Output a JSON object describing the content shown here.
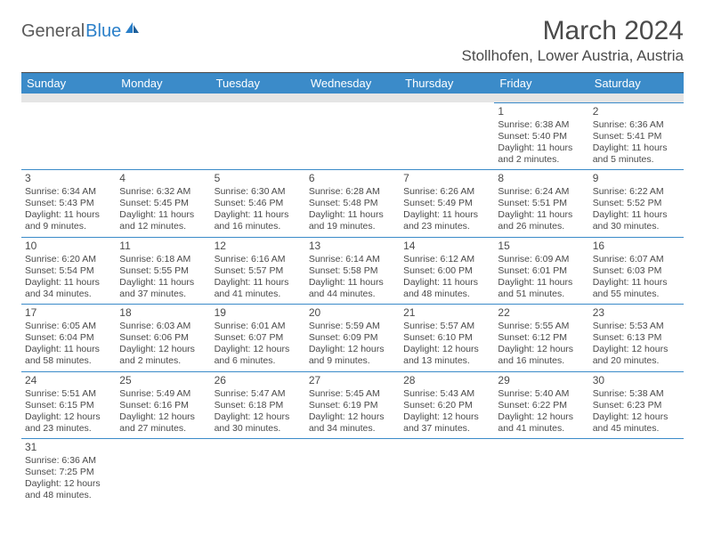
{
  "logo": {
    "text1": "General",
    "text2": "Blue"
  },
  "title": "March 2024",
  "location": "Stollhofen, Lower Austria, Austria",
  "colors": {
    "header_bg": "#3b8bc9",
    "header_fg": "#ffffff",
    "grid_line": "#3b8bc9",
    "text": "#4a4a4a",
    "spacer": "#e5e5e5",
    "logo_blue": "#2a7fc9"
  },
  "weekdays": [
    "Sunday",
    "Monday",
    "Tuesday",
    "Wednesday",
    "Thursday",
    "Friday",
    "Saturday"
  ],
  "weeks": [
    [
      null,
      null,
      null,
      null,
      null,
      {
        "n": "1",
        "sr": "Sunrise: 6:38 AM",
        "ss": "Sunset: 5:40 PM",
        "d1": "Daylight: 11 hours",
        "d2": "and 2 minutes."
      },
      {
        "n": "2",
        "sr": "Sunrise: 6:36 AM",
        "ss": "Sunset: 5:41 PM",
        "d1": "Daylight: 11 hours",
        "d2": "and 5 minutes."
      }
    ],
    [
      {
        "n": "3",
        "sr": "Sunrise: 6:34 AM",
        "ss": "Sunset: 5:43 PM",
        "d1": "Daylight: 11 hours",
        "d2": "and 9 minutes."
      },
      {
        "n": "4",
        "sr": "Sunrise: 6:32 AM",
        "ss": "Sunset: 5:45 PM",
        "d1": "Daylight: 11 hours",
        "d2": "and 12 minutes."
      },
      {
        "n": "5",
        "sr": "Sunrise: 6:30 AM",
        "ss": "Sunset: 5:46 PM",
        "d1": "Daylight: 11 hours",
        "d2": "and 16 minutes."
      },
      {
        "n": "6",
        "sr": "Sunrise: 6:28 AM",
        "ss": "Sunset: 5:48 PM",
        "d1": "Daylight: 11 hours",
        "d2": "and 19 minutes."
      },
      {
        "n": "7",
        "sr": "Sunrise: 6:26 AM",
        "ss": "Sunset: 5:49 PM",
        "d1": "Daylight: 11 hours",
        "d2": "and 23 minutes."
      },
      {
        "n": "8",
        "sr": "Sunrise: 6:24 AM",
        "ss": "Sunset: 5:51 PM",
        "d1": "Daylight: 11 hours",
        "d2": "and 26 minutes."
      },
      {
        "n": "9",
        "sr": "Sunrise: 6:22 AM",
        "ss": "Sunset: 5:52 PM",
        "d1": "Daylight: 11 hours",
        "d2": "and 30 minutes."
      }
    ],
    [
      {
        "n": "10",
        "sr": "Sunrise: 6:20 AM",
        "ss": "Sunset: 5:54 PM",
        "d1": "Daylight: 11 hours",
        "d2": "and 34 minutes."
      },
      {
        "n": "11",
        "sr": "Sunrise: 6:18 AM",
        "ss": "Sunset: 5:55 PM",
        "d1": "Daylight: 11 hours",
        "d2": "and 37 minutes."
      },
      {
        "n": "12",
        "sr": "Sunrise: 6:16 AM",
        "ss": "Sunset: 5:57 PM",
        "d1": "Daylight: 11 hours",
        "d2": "and 41 minutes."
      },
      {
        "n": "13",
        "sr": "Sunrise: 6:14 AM",
        "ss": "Sunset: 5:58 PM",
        "d1": "Daylight: 11 hours",
        "d2": "and 44 minutes."
      },
      {
        "n": "14",
        "sr": "Sunrise: 6:12 AM",
        "ss": "Sunset: 6:00 PM",
        "d1": "Daylight: 11 hours",
        "d2": "and 48 minutes."
      },
      {
        "n": "15",
        "sr": "Sunrise: 6:09 AM",
        "ss": "Sunset: 6:01 PM",
        "d1": "Daylight: 11 hours",
        "d2": "and 51 minutes."
      },
      {
        "n": "16",
        "sr": "Sunrise: 6:07 AM",
        "ss": "Sunset: 6:03 PM",
        "d1": "Daylight: 11 hours",
        "d2": "and 55 minutes."
      }
    ],
    [
      {
        "n": "17",
        "sr": "Sunrise: 6:05 AM",
        "ss": "Sunset: 6:04 PM",
        "d1": "Daylight: 11 hours",
        "d2": "and 58 minutes."
      },
      {
        "n": "18",
        "sr": "Sunrise: 6:03 AM",
        "ss": "Sunset: 6:06 PM",
        "d1": "Daylight: 12 hours",
        "d2": "and 2 minutes."
      },
      {
        "n": "19",
        "sr": "Sunrise: 6:01 AM",
        "ss": "Sunset: 6:07 PM",
        "d1": "Daylight: 12 hours",
        "d2": "and 6 minutes."
      },
      {
        "n": "20",
        "sr": "Sunrise: 5:59 AM",
        "ss": "Sunset: 6:09 PM",
        "d1": "Daylight: 12 hours",
        "d2": "and 9 minutes."
      },
      {
        "n": "21",
        "sr": "Sunrise: 5:57 AM",
        "ss": "Sunset: 6:10 PM",
        "d1": "Daylight: 12 hours",
        "d2": "and 13 minutes."
      },
      {
        "n": "22",
        "sr": "Sunrise: 5:55 AM",
        "ss": "Sunset: 6:12 PM",
        "d1": "Daylight: 12 hours",
        "d2": "and 16 minutes."
      },
      {
        "n": "23",
        "sr": "Sunrise: 5:53 AM",
        "ss": "Sunset: 6:13 PM",
        "d1": "Daylight: 12 hours",
        "d2": "and 20 minutes."
      }
    ],
    [
      {
        "n": "24",
        "sr": "Sunrise: 5:51 AM",
        "ss": "Sunset: 6:15 PM",
        "d1": "Daylight: 12 hours",
        "d2": "and 23 minutes."
      },
      {
        "n": "25",
        "sr": "Sunrise: 5:49 AM",
        "ss": "Sunset: 6:16 PM",
        "d1": "Daylight: 12 hours",
        "d2": "and 27 minutes."
      },
      {
        "n": "26",
        "sr": "Sunrise: 5:47 AM",
        "ss": "Sunset: 6:18 PM",
        "d1": "Daylight: 12 hours",
        "d2": "and 30 minutes."
      },
      {
        "n": "27",
        "sr": "Sunrise: 5:45 AM",
        "ss": "Sunset: 6:19 PM",
        "d1": "Daylight: 12 hours",
        "d2": "and 34 minutes."
      },
      {
        "n": "28",
        "sr": "Sunrise: 5:43 AM",
        "ss": "Sunset: 6:20 PM",
        "d1": "Daylight: 12 hours",
        "d2": "and 37 minutes."
      },
      {
        "n": "29",
        "sr": "Sunrise: 5:40 AM",
        "ss": "Sunset: 6:22 PM",
        "d1": "Daylight: 12 hours",
        "d2": "and 41 minutes."
      },
      {
        "n": "30",
        "sr": "Sunrise: 5:38 AM",
        "ss": "Sunset: 6:23 PM",
        "d1": "Daylight: 12 hours",
        "d2": "and 45 minutes."
      }
    ],
    [
      {
        "n": "31",
        "sr": "Sunrise: 6:36 AM",
        "ss": "Sunset: 7:25 PM",
        "d1": "Daylight: 12 hours",
        "d2": "and 48 minutes."
      },
      null,
      null,
      null,
      null,
      null,
      null
    ]
  ]
}
